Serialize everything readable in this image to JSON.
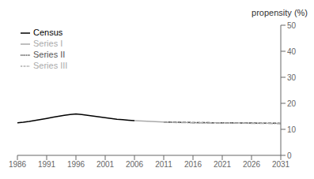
{
  "chart_data": {
    "type": "line",
    "ylabel": "propensity (%)",
    "x": [
      1986,
      1987,
      1988,
      1989,
      1990,
      1991,
      1992,
      1993,
      1994,
      1995,
      1996,
      1997,
      1998,
      1999,
      2000,
      2001,
      2002,
      2003,
      2004,
      2005,
      2006,
      2011,
      2016,
      2021,
      2026,
      2031
    ],
    "series": [
      {
        "name": "Census",
        "color": "#000000",
        "line_style": "solid",
        "values": [
          12.5,
          12.7,
          13.0,
          13.4,
          13.8,
          14.2,
          14.6,
          15.0,
          15.4,
          15.7,
          15.9,
          15.7,
          15.4,
          15.1,
          14.8,
          14.5,
          14.2,
          13.9,
          13.7,
          13.5,
          13.3,
          null,
          null,
          null,
          null,
          null
        ]
      },
      {
        "name": "Series I",
        "color": "#aaaaaa",
        "line_style": "solid",
        "values": [
          null,
          null,
          null,
          null,
          null,
          null,
          null,
          null,
          null,
          null,
          null,
          null,
          null,
          null,
          null,
          null,
          null,
          null,
          null,
          null,
          13.3,
          12.8,
          12.6,
          12.5,
          12.4,
          12.3
        ]
      },
      {
        "name": "Series II",
        "color": "#555555",
        "line_style": "dashed",
        "values": [
          null,
          null,
          null,
          null,
          null,
          null,
          null,
          null,
          null,
          null,
          null,
          null,
          null,
          null,
          null,
          null,
          null,
          null,
          null,
          null,
          null,
          12.8,
          12.6,
          12.5,
          12.4,
          12.3
        ]
      },
      {
        "name": "Series III",
        "color": "#aaaaaa",
        "line_style": "dashdot",
        "values": [
          null,
          null,
          null,
          null,
          null,
          null,
          null,
          null,
          null,
          null,
          null,
          null,
          null,
          null,
          null,
          null,
          null,
          null,
          null,
          null,
          null,
          12.7,
          12.5,
          12.4,
          12.3,
          12.2
        ]
      }
    ],
    "xlim": [
      1986,
      2031
    ],
    "ylim": [
      0,
      50
    ],
    "xticks": [
      1986,
      1991,
      1996,
      2001,
      2006,
      2011,
      2016,
      2021,
      2026,
      2031
    ],
    "yticks": [
      0,
      10,
      20,
      30,
      40,
      50
    ],
    "grid": false,
    "legend": "upper left"
  }
}
